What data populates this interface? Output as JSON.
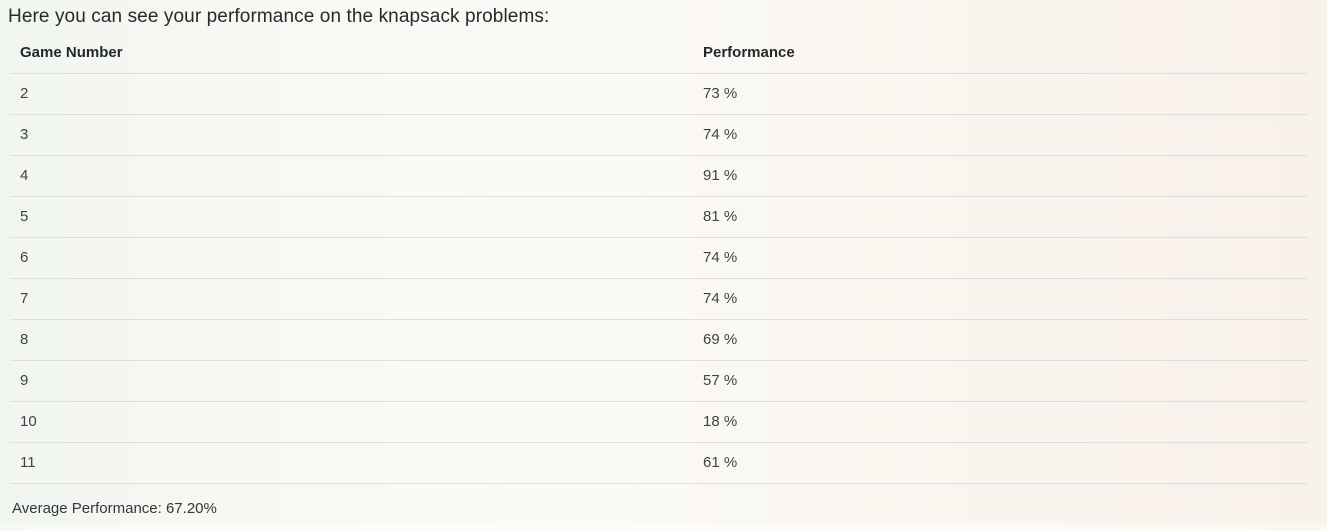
{
  "title": "Here you can see your performance on the knapsack problems:",
  "table": {
    "columns": [
      "Game Number",
      "Performance"
    ],
    "rows": [
      {
        "game": "2",
        "performance": "73 %"
      },
      {
        "game": "3",
        "performance": "74 %"
      },
      {
        "game": "4",
        "performance": "91 %"
      },
      {
        "game": "5",
        "performance": "81 %"
      },
      {
        "game": "6",
        "performance": "74 %"
      },
      {
        "game": "7",
        "performance": "74 %"
      },
      {
        "game": "8",
        "performance": "69 %"
      },
      {
        "game": "9",
        "performance": "57 %"
      },
      {
        "game": "10",
        "performance": "18 %"
      },
      {
        "game": "11",
        "performance": "61 %"
      }
    ]
  },
  "summary": {
    "average_label": "Average Performance: 67.20%"
  },
  "colors": {
    "background_left": "#f1f5f0",
    "background_middle": "#fbfaf7",
    "background_right": "#f8f1ea",
    "row_divider": "#dbdfe4",
    "text_primary": "#212529",
    "text_cell": "#3f4348"
  }
}
